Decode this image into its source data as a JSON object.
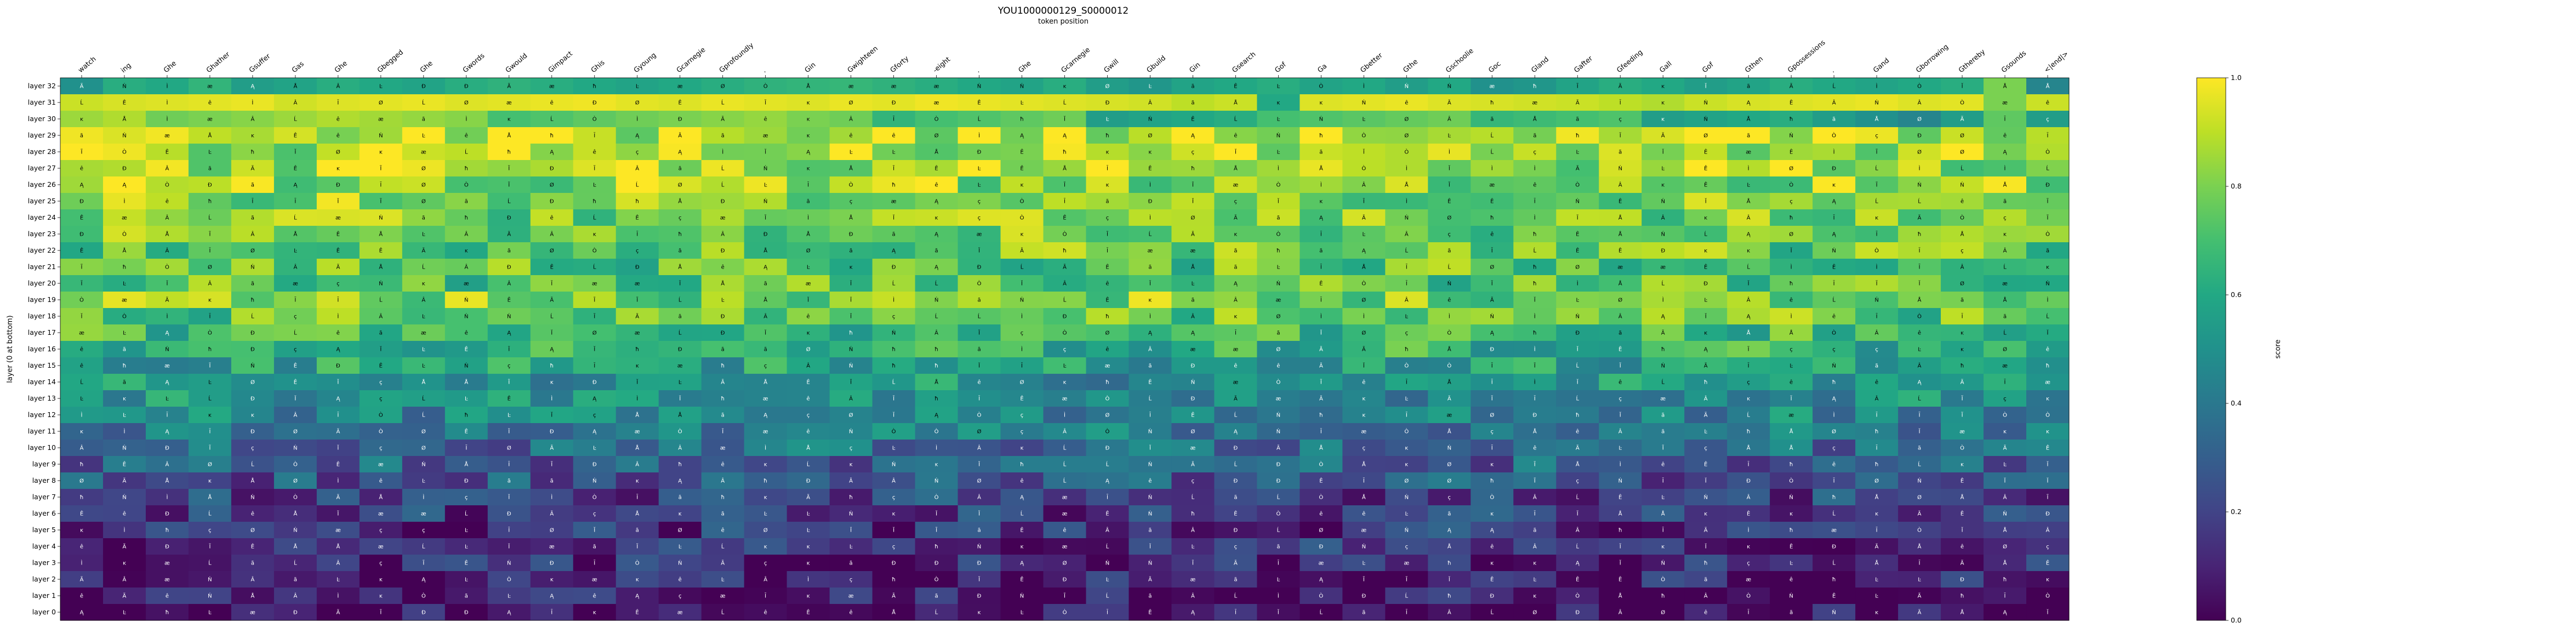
{
  "chart_data": {
    "type": "heatmap",
    "title": "YOU1000000129_S0000012",
    "xlabel": "token position",
    "ylabel": "layer (0 at bottom)",
    "colorbar_label": "score",
    "colormap": "viridis",
    "vmin": 0.0,
    "vmax": 1.0,
    "colorbar_ticks": [
      "0.0",
      "0.2",
      "0.4",
      "0.6",
      "0.8",
      "1.0"
    ],
    "x_tokens": [
      "watch",
      "ing",
      "Ghe",
      "Ghather",
      "Gsuffer",
      "Gas",
      "Ghe",
      "Gbegged",
      "Ghe",
      "Gwords",
      "Gwould",
      "Gimpact",
      "Ghis",
      "Gyoung",
      "Gcarnegie",
      "Gprofoundly",
      ".",
      "Gin",
      "Gwighteen",
      "Gforty",
      "-eight",
      ".",
      "Ghe",
      "Gcarnegie",
      "Gwill",
      "Gbuild",
      "Gin",
      "Gsearch",
      "Gof",
      "Ga",
      "Gbetter",
      "Gthe",
      "Gschoolie",
      "Goc",
      "Gland",
      "Gafter",
      "Gfeeding",
      "Gall",
      "Gof",
      "Gthen",
      "Gpossessions",
      ".",
      "Gand",
      "Gborrowing",
      "Gthereby",
      "Gsounds",
      "<|end|>"
    ],
    "y_layers": [
      "layer 32",
      "layer 31",
      "layer 30",
      "layer 29",
      "layer 28",
      "layer 27",
      "layer 26",
      "layer 25",
      "layer 24",
      "layer 23",
      "layer 22",
      "layer 21",
      "layer 20",
      "layer 19",
      "layer 18",
      "layer 17",
      "layer 16",
      "layer 15",
      "layer 14",
      "layer 13",
      "layer 12",
      "layer 11",
      "layer 10",
      "layer 9",
      "layer 8",
      "layer 7",
      "layer 6",
      "layer 5",
      "layer 4",
      "layer 3",
      "layer 2",
      "layer 1",
      "layer 0"
    ],
    "row_templates": [
      [
        0.5,
        0.62,
        0.6,
        0.65,
        0.55,
        0.58,
        0.62,
        0.6,
        0.58,
        0.62,
        0.64,
        0.62,
        0.6,
        0.58,
        0.6,
        0.62,
        0.64,
        0.65,
        0.66,
        0.64,
        0.62,
        0.6,
        0.58,
        0.62,
        0.55,
        0.52,
        0.58,
        0.6,
        0.62,
        0.58,
        0.6,
        0.55,
        0.6,
        0.5,
        0.52,
        0.58,
        0.62,
        0.6,
        0.55,
        0.58,
        0.62,
        0.6,
        0.58,
        0.6,
        0.62,
        0.8,
        0.45
      ],
      [
        0.92,
        0.94,
        0.95,
        0.96,
        0.97,
        0.93,
        0.95,
        0.96,
        0.97,
        0.95,
        0.96,
        0.97,
        0.98,
        0.96,
        0.95,
        0.97,
        0.96,
        0.95,
        0.97,
        0.96,
        0.98,
        0.97,
        0.96,
        0.95,
        0.94,
        0.93,
        0.9,
        0.92,
        0.6,
        0.95,
        0.96,
        0.97,
        0.95,
        0.94,
        0.93,
        0.92,
        0.9,
        0.88,
        0.92,
        0.94,
        0.95,
        0.96,
        0.97,
        0.95,
        0.96,
        0.8,
        0.92
      ],
      [
        0.85,
        0.88,
        0.78,
        0.8,
        0.82,
        0.85,
        0.88,
        0.86,
        0.84,
        0.82,
        0.7,
        0.72,
        0.75,
        0.78,
        0.8,
        0.82,
        0.84,
        0.8,
        0.78,
        0.65,
        0.7,
        0.72,
        0.75,
        0.78,
        0.55,
        0.58,
        0.6,
        0.62,
        0.7,
        0.72,
        0.74,
        0.76,
        0.78,
        0.66,
        0.68,
        0.7,
        0.72,
        0.55,
        0.58,
        0.6,
        0.62,
        0.55,
        0.5,
        0.45,
        0.55,
        0.75,
        0.55
      ]
    ],
    "annotations_sample": [
      "Ã",
      "ĸ",
      "Ê",
      "Ĩ",
      "Ð",
      "ç",
      "Ń",
      "ħ",
      "Ŀ",
      "Ò",
      "Å",
      "Â",
      "ã",
      "ê",
      "Ĭ",
      "æ",
      "Ì",
      "Ĺ",
      "Ą",
      "Ø",
      "Ī"
    ]
  }
}
